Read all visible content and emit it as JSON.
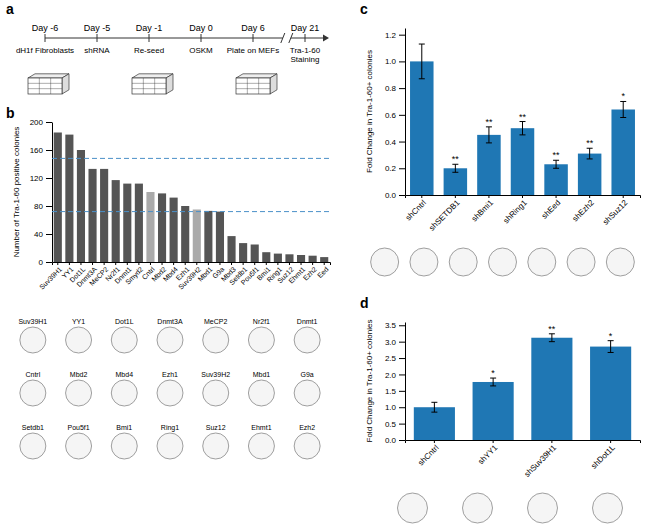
{
  "chart_data": [
    {
      "type": "timeline",
      "title": "a",
      "categories": [
        "Day -6",
        "Day -5",
        "Day -1",
        "Day 0",
        "Day 6",
        "Day 21"
      ],
      "annotations": [
        "dH1f Fibroblasts",
        "shRNA",
        "Re-seed",
        "OSKM",
        "Plate on MEFs",
        "Tra-1-60\nStaining"
      ]
    },
    {
      "type": "bar",
      "title": "b",
      "categories": [
        "Suv39H1",
        "YY1",
        "Dot1L",
        "Dnmt3A",
        "MeCP2",
        "Nr2f1",
        "Dnmt1",
        "Smyd2",
        "Cntrl",
        "Mbd2",
        "Mbd4",
        "Ezh1",
        "Suv39H2",
        "Mbd1",
        "G9a",
        "Mbd3",
        "Setdb1",
        "Pou5f1",
        "Bmi1",
        "Ring1",
        "Suz12",
        "Ehmt1",
        "Ezh2",
        "Eed"
      ],
      "values": [
        185,
        182,
        160,
        133,
        133,
        117,
        112,
        112,
        100,
        98,
        92,
        80,
        75,
        73,
        72,
        37,
        27,
        25,
        14,
        12,
        11,
        10,
        9,
        7
      ],
      "colors": [
        "#555555",
        "#555555",
        "#555555",
        "#555555",
        "#555555",
        "#555555",
        "#555555",
        "#555555",
        "#aaaaaa",
        "#555555",
        "#555555",
        "#555555",
        "#aaaaaa",
        "#555555",
        "#555555",
        "#555555",
        "#555555",
        "#555555",
        "#555555",
        "#555555",
        "#555555",
        "#555555",
        "#555555",
        "#555555"
      ],
      "reference_lines": [
        148,
        72
      ],
      "ylabel": "Number of Tra-1-60 positive colonies",
      "ylim": [
        0,
        200
      ],
      "yticks": [
        0,
        40,
        80,
        120,
        160,
        200
      ],
      "annotations": [
        [
          "Suv39H1",
          "YY1",
          "Dot1L",
          "Dnmt3A",
          "MeCP2",
          "Nr2f1",
          "Dnmt1"
        ],
        [
          "Cntrl",
          "Mbd2",
          "Mbd4",
          "Ezh1",
          "Suv39H2",
          "Mbd1",
          "G9a"
        ],
        [
          "Setdb1",
          "Pou5f1",
          "Bmi1",
          "Ring1",
          "Suz12",
          "Ehmt1",
          "Ezh2"
        ]
      ]
    },
    {
      "type": "bar",
      "title": "c",
      "categories": [
        "shCntrl",
        "shSETDB1",
        "shBmi1",
        "shRing1",
        "shEed",
        "shEzh2",
        "shSuz12"
      ],
      "values": [
        1.0,
        0.2,
        0.45,
        0.5,
        0.23,
        0.31,
        0.64
      ],
      "errors": [
        0.13,
        0.03,
        0.06,
        0.05,
        0.03,
        0.04,
        0.06
      ],
      "significance": [
        null,
        "**",
        "**",
        "**",
        "**",
        "**",
        "*"
      ],
      "ylabel": "Fold Change in Tra-1-60+ colonies",
      "ylim": [
        0,
        1.25
      ],
      "yticks": [
        {
          "value": 0,
          "label": "0.0"
        },
        0.2,
        0.4,
        0.6,
        0.8,
        {
          "value": 1.0,
          "label": "1.0"
        },
        1.2
      ]
    },
    {
      "type": "bar",
      "title": "d",
      "categories": [
        "shCntrl",
        "shYY1",
        "shSuv39H1",
        "shDot1L"
      ],
      "values": [
        1.0,
        1.77,
        3.12,
        2.85
      ],
      "errors": [
        0.15,
        0.12,
        0.12,
        0.18
      ],
      "significance": [
        null,
        "*",
        "**",
        "*"
      ],
      "ylabel": "Fold Change in Tra-1-60+ colonies",
      "ylim": [
        0,
        3.6
      ],
      "yticks": [
        {
          "value": 0,
          "label": "0.0"
        },
        0.5,
        {
          "value": 1.0,
          "label": "1.0"
        },
        1.5,
        {
          "value": 2.0,
          "label": "2.0"
        },
        2.5,
        {
          "value": 3.0,
          "label": "3.0"
        },
        3.5
      ]
    }
  ]
}
